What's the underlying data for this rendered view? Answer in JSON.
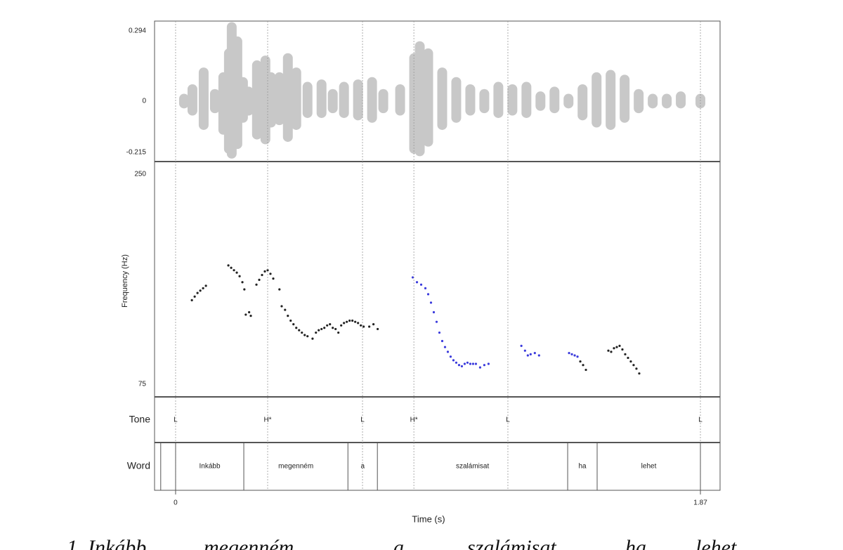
{
  "chart_data": [
    {
      "type": "waveform",
      "color": "#c8c8c8",
      "xlim": [
        -0.075,
        1.94
      ],
      "ylim": [
        -0.253,
        0.335
      ],
      "yticks": [
        0.294,
        0,
        -0.215
      ],
      "x": [
        0.03,
        0.06,
        0.1,
        0.14,
        0.17,
        0.19,
        0.2,
        0.22,
        0.24,
        0.26,
        0.29,
        0.32,
        0.34,
        0.37,
        0.4,
        0.43,
        0.47,
        0.52,
        0.56,
        0.6,
        0.65,
        0.7,
        0.74,
        0.8,
        0.85,
        0.87,
        0.9,
        0.95,
        1.0,
        1.05,
        1.1,
        1.15,
        1.2,
        1.25,
        1.3,
        1.35,
        1.4,
        1.45,
        1.5,
        1.55,
        1.6,
        1.65,
        1.7,
        1.75,
        1.8,
        1.87
      ],
      "max": [
        0.01,
        0.05,
        0.12,
        0.03,
        0.1,
        0.2,
        0.31,
        0.25,
        0.08,
        0.04,
        0.15,
        0.17,
        0.1,
        0.1,
        0.18,
        0.12,
        0.06,
        0.07,
        0.03,
        0.06,
        0.07,
        0.08,
        0.03,
        0.05,
        0.18,
        0.23,
        0.2,
        0.12,
        0.08,
        0.05,
        0.03,
        0.06,
        0.05,
        0.06,
        0.02,
        0.04,
        0.01,
        0.05,
        0.1,
        0.11,
        0.09,
        0.03,
        0.01,
        0.01,
        0.02,
        0.01
      ],
      "min": [
        -0.01,
        -0.04,
        -0.1,
        -0.03,
        -0.12,
        -0.2,
        -0.22,
        -0.18,
        -0.07,
        -0.04,
        -0.14,
        -0.16,
        -0.09,
        -0.08,
        -0.15,
        -0.1,
        -0.05,
        -0.05,
        -0.03,
        -0.05,
        -0.06,
        -0.07,
        -0.03,
        -0.04,
        -0.2,
        -0.21,
        -0.17,
        -0.1,
        -0.07,
        -0.04,
        -0.03,
        -0.05,
        -0.04,
        -0.05,
        -0.02,
        -0.03,
        -0.01,
        -0.06,
        -0.09,
        -0.1,
        -0.07,
        -0.03,
        -0.01,
        -0.01,
        -0.01,
        -0.01
      ]
    },
    {
      "type": "scatter",
      "ylabel": "Frequency (Hz)",
      "xlim": [
        -0.075,
        1.94
      ],
      "ylim": [
        64.5,
        260.5
      ],
      "yticks": [
        250,
        75
      ],
      "series": [
        {
          "color": "#222222",
          "x": [
            0.058,
            0.068,
            0.078,
            0.088,
            0.098,
            0.108,
            0.188,
            0.198,
            0.208,
            0.218,
            0.228,
            0.238,
            0.245,
            0.25,
            0.262,
            0.268,
            0.288,
            0.298,
            0.308,
            0.318,
            0.328,
            0.338,
            0.348,
            0.37,
            0.378,
            0.39,
            0.4,
            0.41,
            0.42,
            0.43,
            0.44,
            0.45,
            0.46,
            0.47,
            0.488,
            0.5,
            0.51,
            0.52,
            0.53,
            0.54,
            0.55,
            0.56,
            0.57,
            0.58,
            0.59,
            0.6,
            0.61,
            0.62,
            0.63,
            0.64,
            0.65,
            0.66,
            0.67,
            0.69,
            0.705,
            0.72,
            1.442,
            1.452,
            1.462,
            1.542,
            1.552,
            1.562,
            1.572,
            1.582,
            1.592,
            1.602,
            1.612,
            1.622,
            1.632,
            1.642,
            1.652
          ],
          "values": [
            145,
            148,
            151,
            153,
            155,
            157,
            174,
            172,
            170,
            168,
            165,
            160,
            154,
            133,
            135,
            132,
            158,
            162,
            166,
            169,
            170,
            167,
            163,
            154,
            140,
            137,
            132,
            128,
            125,
            122,
            120,
            118,
            116,
            115,
            113,
            118,
            120,
            121,
            122,
            124,
            125,
            122,
            121,
            118,
            124,
            126,
            127,
            128,
            128,
            127,
            126,
            124,
            123,
            123,
            125,
            121,
            94,
            91,
            87,
            103,
            102,
            105,
            106,
            107,
            104,
            100,
            97,
            94,
            91,
            88,
            84
          ]
        },
        {
          "color": "#3b3bdc",
          "x": [
            0.845,
            0.86,
            0.875,
            0.89,
            0.9,
            0.91,
            0.92,
            0.93,
            0.94,
            0.95,
            0.96,
            0.97,
            0.98,
            0.99,
            1.0,
            1.01,
            1.02,
            1.03,
            1.04,
            1.05,
            1.06,
            1.07,
            1.085,
            1.1,
            1.115,
            1.232,
            1.245,
            1.255,
            1.265,
            1.28,
            1.295,
            1.402,
            1.412,
            1.422,
            1.432
          ],
          "values": [
            164,
            160,
            158,
            155,
            150,
            143,
            135,
            127,
            118,
            111,
            106,
            102,
            98,
            95,
            93,
            91,
            90,
            92,
            93,
            92,
            92,
            92,
            89,
            91,
            92,
            107,
            103,
            99,
            100,
            101,
            99,
            101,
            100,
            99,
            98
          ]
        }
      ]
    },
    {
      "type": "tiers",
      "xlim": [
        -0.075,
        1.94
      ],
      "xticks": [
        0,
        1.87
      ],
      "xlabel": "Time (s)",
      "tone": {
        "label": "Tone",
        "points": [
          {
            "time": 0,
            "label": "L"
          },
          {
            "time": 0.328,
            "label": "H*"
          },
          {
            "time": 0.666,
            "label": "L"
          },
          {
            "time": 0.849,
            "label": "H*"
          },
          {
            "time": 1.184,
            "label": "L"
          },
          {
            "time": 1.87,
            "label": "L"
          }
        ]
      },
      "word": {
        "label": "Word",
        "tier_start": -0.053,
        "intervals": [
          {
            "start": 0,
            "end": 0.243,
            "label": "Inkább"
          },
          {
            "start": 0.243,
            "end": 0.614,
            "label": "megenném"
          },
          {
            "start": 0.614,
            "end": 0.719,
            "label": "a"
          },
          {
            "start": 0.719,
            "end": 1.397,
            "label": "szalámisat"
          },
          {
            "start": 1.397,
            "end": 1.502,
            "label": "ha"
          },
          {
            "start": 1.502,
            "end": 1.87,
            "label": "lehet"
          }
        ]
      }
    }
  ],
  "caption": [
    "1. Inkább",
    "megenném",
    "a",
    "szalámisat",
    "ha",
    "lehet"
  ]
}
